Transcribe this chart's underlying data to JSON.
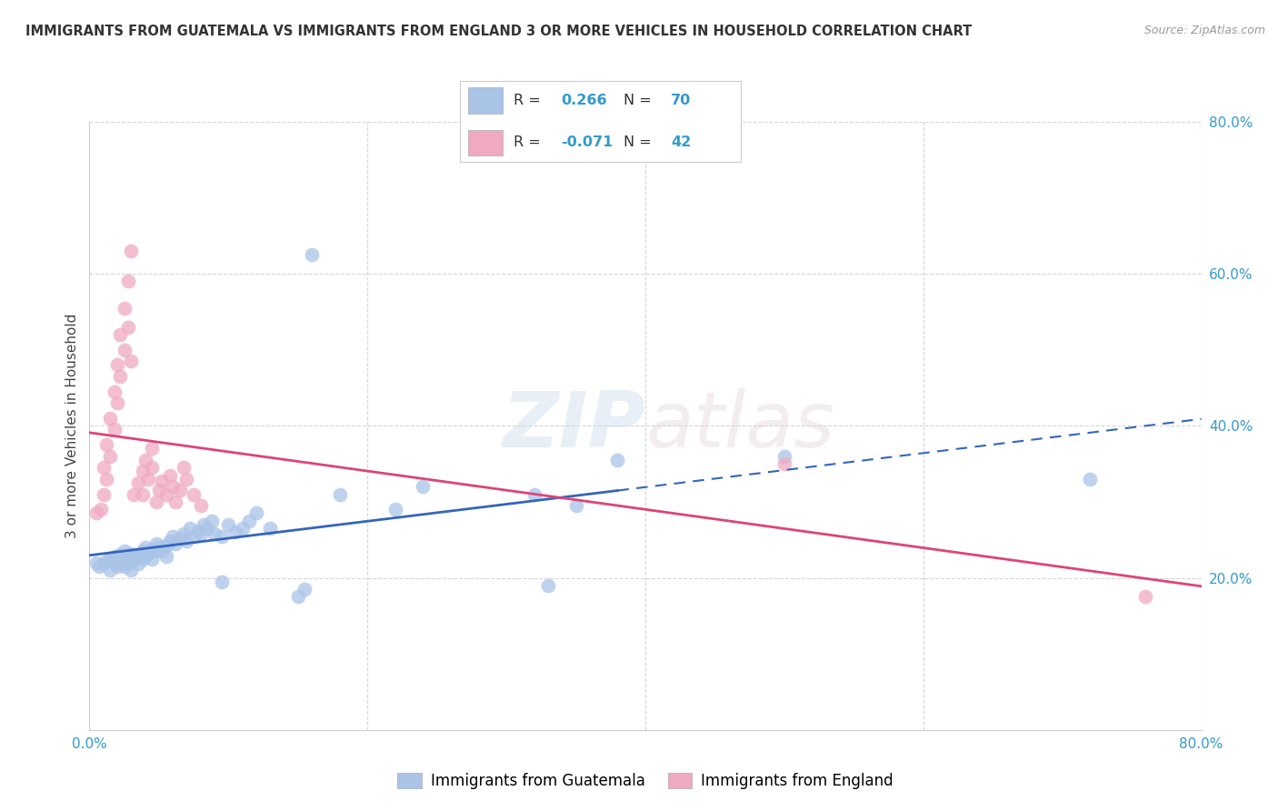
{
  "title": "IMMIGRANTS FROM GUATEMALA VS IMMIGRANTS FROM ENGLAND 3 OR MORE VEHICLES IN HOUSEHOLD CORRELATION CHART",
  "source": "Source: ZipAtlas.com",
  "ylabel": "3 or more Vehicles in Household",
  "legend1_label": "Immigrants from Guatemala",
  "legend2_label": "Immigrants from England",
  "R_guatemala": 0.266,
  "N_guatemala": 70,
  "R_england": -0.071,
  "N_england": 42,
  "watermark_zip": "ZIP",
  "watermark_atlas": "atlas",
  "blue_color": "#aac4e8",
  "pink_color": "#f0aac0",
  "blue_line_color": "#3366bb",
  "pink_line_color": "#dd4477",
  "xmin": 0.0,
  "xmax": 0.8,
  "ymin": 0.0,
  "ymax": 0.8,
  "blue_scatter": [
    [
      0.005,
      0.22
    ],
    [
      0.007,
      0.215
    ],
    [
      0.01,
      0.218
    ],
    [
      0.012,
      0.222
    ],
    [
      0.015,
      0.225
    ],
    [
      0.015,
      0.21
    ],
    [
      0.018,
      0.22
    ],
    [
      0.018,
      0.228
    ],
    [
      0.02,
      0.215
    ],
    [
      0.02,
      0.222
    ],
    [
      0.022,
      0.23
    ],
    [
      0.022,
      0.218
    ],
    [
      0.025,
      0.225
    ],
    [
      0.025,
      0.215
    ],
    [
      0.025,
      0.235
    ],
    [
      0.028,
      0.22
    ],
    [
      0.028,
      0.228
    ],
    [
      0.03,
      0.222
    ],
    [
      0.03,
      0.232
    ],
    [
      0.03,
      0.21
    ],
    [
      0.032,
      0.225
    ],
    [
      0.035,
      0.23
    ],
    [
      0.035,
      0.218
    ],
    [
      0.038,
      0.235
    ],
    [
      0.038,
      0.225
    ],
    [
      0.04,
      0.228
    ],
    [
      0.04,
      0.24
    ],
    [
      0.042,
      0.232
    ],
    [
      0.045,
      0.238
    ],
    [
      0.045,
      0.225
    ],
    [
      0.048,
      0.235
    ],
    [
      0.048,
      0.245
    ],
    [
      0.05,
      0.24
    ],
    [
      0.052,
      0.235
    ],
    [
      0.055,
      0.242
    ],
    [
      0.055,
      0.228
    ],
    [
      0.058,
      0.248
    ],
    [
      0.06,
      0.255
    ],
    [
      0.062,
      0.245
    ],
    [
      0.065,
      0.252
    ],
    [
      0.068,
      0.258
    ],
    [
      0.07,
      0.248
    ],
    [
      0.072,
      0.265
    ],
    [
      0.075,
      0.255
    ],
    [
      0.078,
      0.262
    ],
    [
      0.08,
      0.258
    ],
    [
      0.082,
      0.27
    ],
    [
      0.085,
      0.265
    ],
    [
      0.088,
      0.275
    ],
    [
      0.09,
      0.258
    ],
    [
      0.095,
      0.195
    ],
    [
      0.095,
      0.255
    ],
    [
      0.1,
      0.27
    ],
    [
      0.105,
      0.26
    ],
    [
      0.11,
      0.265
    ],
    [
      0.115,
      0.275
    ],
    [
      0.12,
      0.285
    ],
    [
      0.13,
      0.265
    ],
    [
      0.15,
      0.175
    ],
    [
      0.155,
      0.185
    ],
    [
      0.16,
      0.625
    ],
    [
      0.18,
      0.31
    ],
    [
      0.22,
      0.29
    ],
    [
      0.24,
      0.32
    ],
    [
      0.32,
      0.31
    ],
    [
      0.33,
      0.19
    ],
    [
      0.35,
      0.295
    ],
    [
      0.38,
      0.355
    ],
    [
      0.5,
      0.36
    ],
    [
      0.72,
      0.33
    ]
  ],
  "pink_scatter": [
    [
      0.005,
      0.285
    ],
    [
      0.008,
      0.29
    ],
    [
      0.01,
      0.31
    ],
    [
      0.01,
      0.345
    ],
    [
      0.012,
      0.375
    ],
    [
      0.012,
      0.33
    ],
    [
      0.015,
      0.41
    ],
    [
      0.015,
      0.36
    ],
    [
      0.018,
      0.445
    ],
    [
      0.018,
      0.395
    ],
    [
      0.02,
      0.48
    ],
    [
      0.02,
      0.43
    ],
    [
      0.022,
      0.52
    ],
    [
      0.022,
      0.465
    ],
    [
      0.025,
      0.555
    ],
    [
      0.025,
      0.5
    ],
    [
      0.028,
      0.59
    ],
    [
      0.028,
      0.53
    ],
    [
      0.03,
      0.63
    ],
    [
      0.03,
      0.485
    ],
    [
      0.032,
      0.31
    ],
    [
      0.035,
      0.325
    ],
    [
      0.038,
      0.34
    ],
    [
      0.038,
      0.31
    ],
    [
      0.04,
      0.355
    ],
    [
      0.042,
      0.33
    ],
    [
      0.045,
      0.37
    ],
    [
      0.045,
      0.345
    ],
    [
      0.048,
      0.3
    ],
    [
      0.05,
      0.315
    ],
    [
      0.052,
      0.328
    ],
    [
      0.055,
      0.31
    ],
    [
      0.058,
      0.335
    ],
    [
      0.06,
      0.32
    ],
    [
      0.062,
      0.3
    ],
    [
      0.065,
      0.315
    ],
    [
      0.068,
      0.345
    ],
    [
      0.07,
      0.33
    ],
    [
      0.075,
      0.31
    ],
    [
      0.08,
      0.295
    ],
    [
      0.5,
      0.35
    ],
    [
      0.76,
      0.175
    ]
  ]
}
